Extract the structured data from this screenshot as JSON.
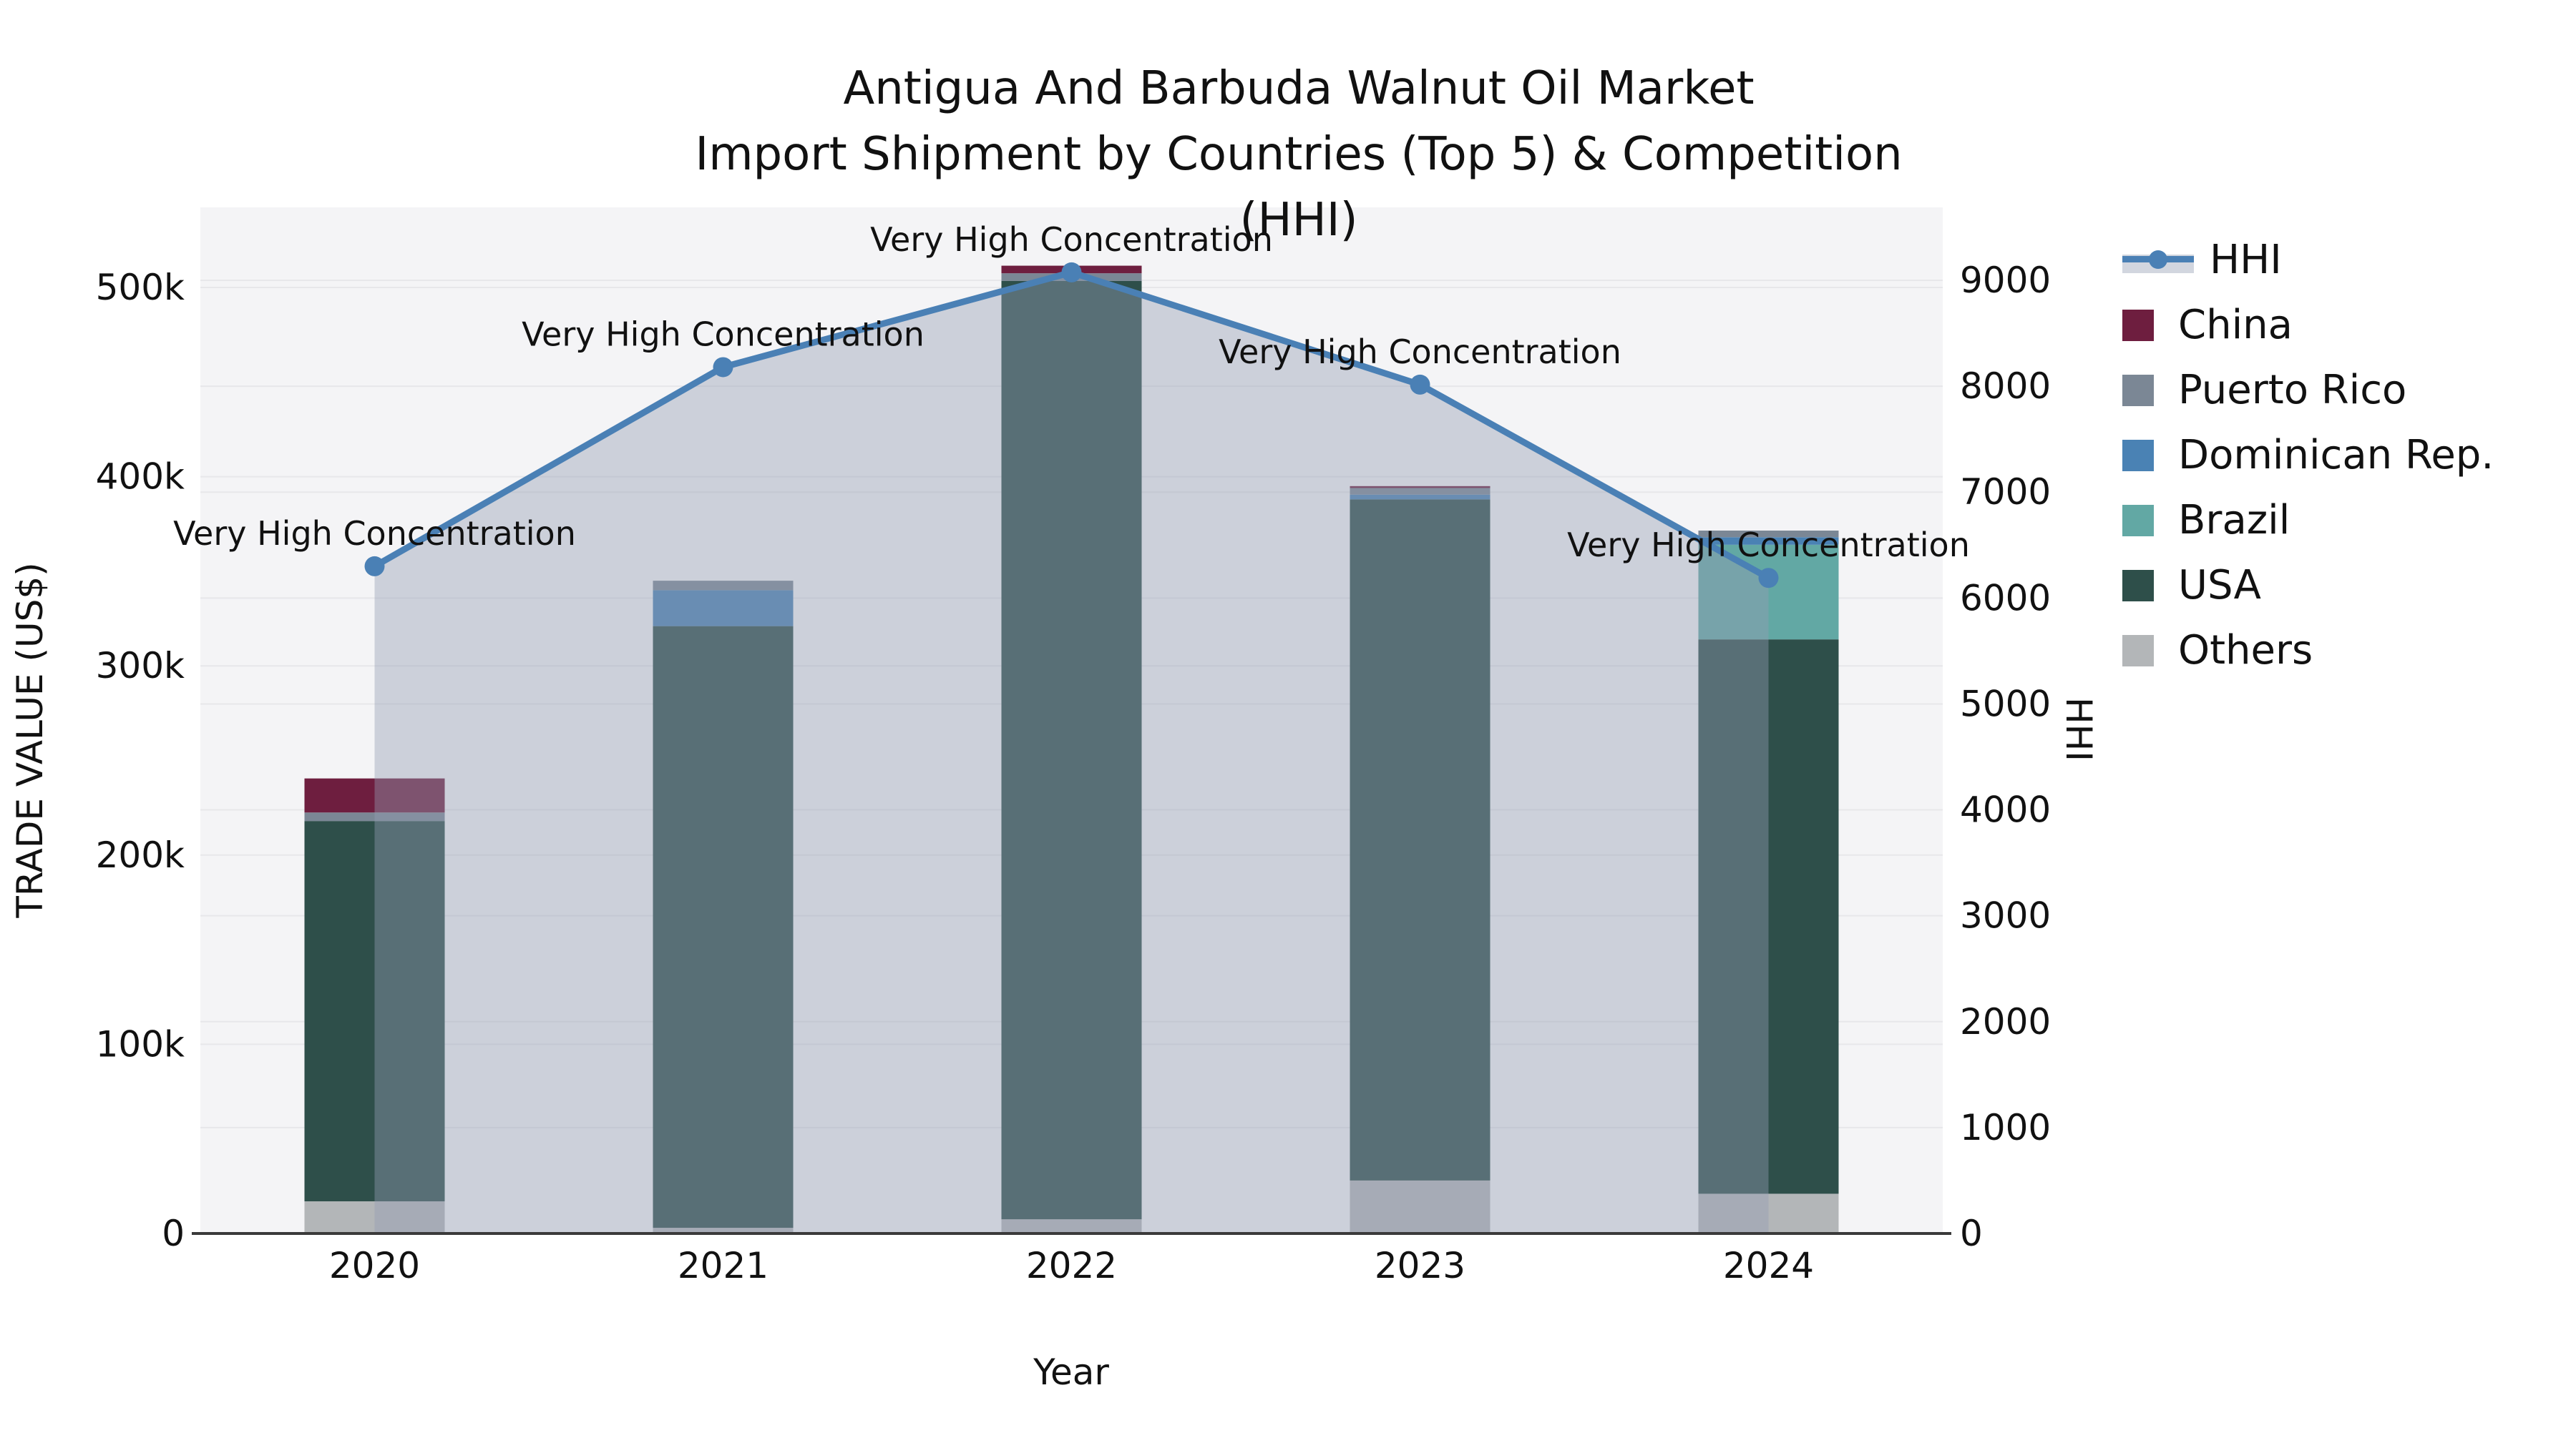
{
  "title": {
    "line1": "Antigua And Barbuda Walnut Oil Market",
    "line2": "Import Shipment by Countries (Top 5) & Competition (HHI)"
  },
  "colors": {
    "china": "#6e1e3f",
    "puerto_rico": "#7b8795",
    "dominican_rep": "#4a82b4",
    "brazil": "#62a8a4",
    "usa": "#2e4f4a",
    "others": "#b3b6b8",
    "hhi_line": "#4a80b5",
    "hhi_area": "rgba(148,158,178,0.42)",
    "plot_bg": "#f4f4f6",
    "grid": "#e7e7ea",
    "axis_line": "#3a3a3a",
    "text": "#111111"
  },
  "legend": [
    {
      "label": "HHI",
      "type": "line",
      "color": "#4a80b5"
    },
    {
      "label": "China",
      "type": "square",
      "color": "#6e1e3f"
    },
    {
      "label": "Puerto Rico",
      "type": "square",
      "color": "#7b8795"
    },
    {
      "label": "Dominican Rep.",
      "type": "square",
      "color": "#4a82b4"
    },
    {
      "label": "Brazil",
      "type": "square",
      "color": "#62a8a4"
    },
    {
      "label": "USA",
      "type": "square",
      "color": "#2e4f4a"
    },
    {
      "label": "Others",
      "type": "square",
      "color": "#b3b6b8"
    }
  ],
  "chart_data": {
    "type": "combo: stacked-bar + line-area",
    "categories": [
      "2020",
      "2021",
      "2022",
      "2023",
      "2024"
    ],
    "x_label": "Year",
    "stack_order_bottom_to_top": [
      "Others",
      "USA",
      "Brazil",
      "Dominican Rep.",
      "Puerto Rico",
      "China"
    ],
    "series": [
      {
        "name": "Others",
        "color": "#b3b6b8",
        "values": [
          17000,
          3000,
          7500,
          28000,
          21000
        ]
      },
      {
        "name": "USA",
        "color": "#2e4f4a",
        "values": [
          201000,
          318000,
          496000,
          360000,
          293000
        ]
      },
      {
        "name": "Brazil",
        "color": "#62a8a4",
        "values": [
          0,
          0,
          0,
          0,
          50000
        ]
      },
      {
        "name": "Dominican Rep.",
        "color": "#4a82b4",
        "values": [
          0,
          19000,
          0,
          2500,
          4000
        ]
      },
      {
        "name": "Puerto Rico",
        "color": "#7b8795",
        "values": [
          4500,
          5000,
          4000,
          3500,
          3500
        ]
      },
      {
        "name": "China",
        "color": "#6e1e3f",
        "values": [
          18000,
          0,
          4000,
          1000,
          0
        ]
      }
    ],
    "bar_totals": [
      240500,
      345000,
      511500,
      395000,
      371500
    ],
    "hhi": {
      "name": "HHI",
      "color": "#4a80b5",
      "values": [
        6300,
        8180,
        9075,
        8015,
        6190
      ],
      "annotations": [
        "Very High Concentration",
        "Very High Concentration",
        "Very High Concentration",
        "Very High Concentration",
        "Very High Concentration"
      ]
    },
    "y_left": {
      "label": "TRADE VALUE (US$)",
      "ticks": [
        0,
        100000,
        200000,
        300000,
        400000,
        500000
      ],
      "tick_labels": [
        "0",
        "100k",
        "200k",
        "300k",
        "400k",
        "500k"
      ],
      "max": 500000
    },
    "y_right": {
      "label": "HHI",
      "ticks": [
        0,
        1000,
        2000,
        3000,
        4000,
        5000,
        6000,
        7000,
        8000,
        9000
      ],
      "tick_labels": [
        "0",
        "1000",
        "2000",
        "3000",
        "4000",
        "5000",
        "6000",
        "7000",
        "8000",
        "9000"
      ],
      "max": 9000
    }
  }
}
